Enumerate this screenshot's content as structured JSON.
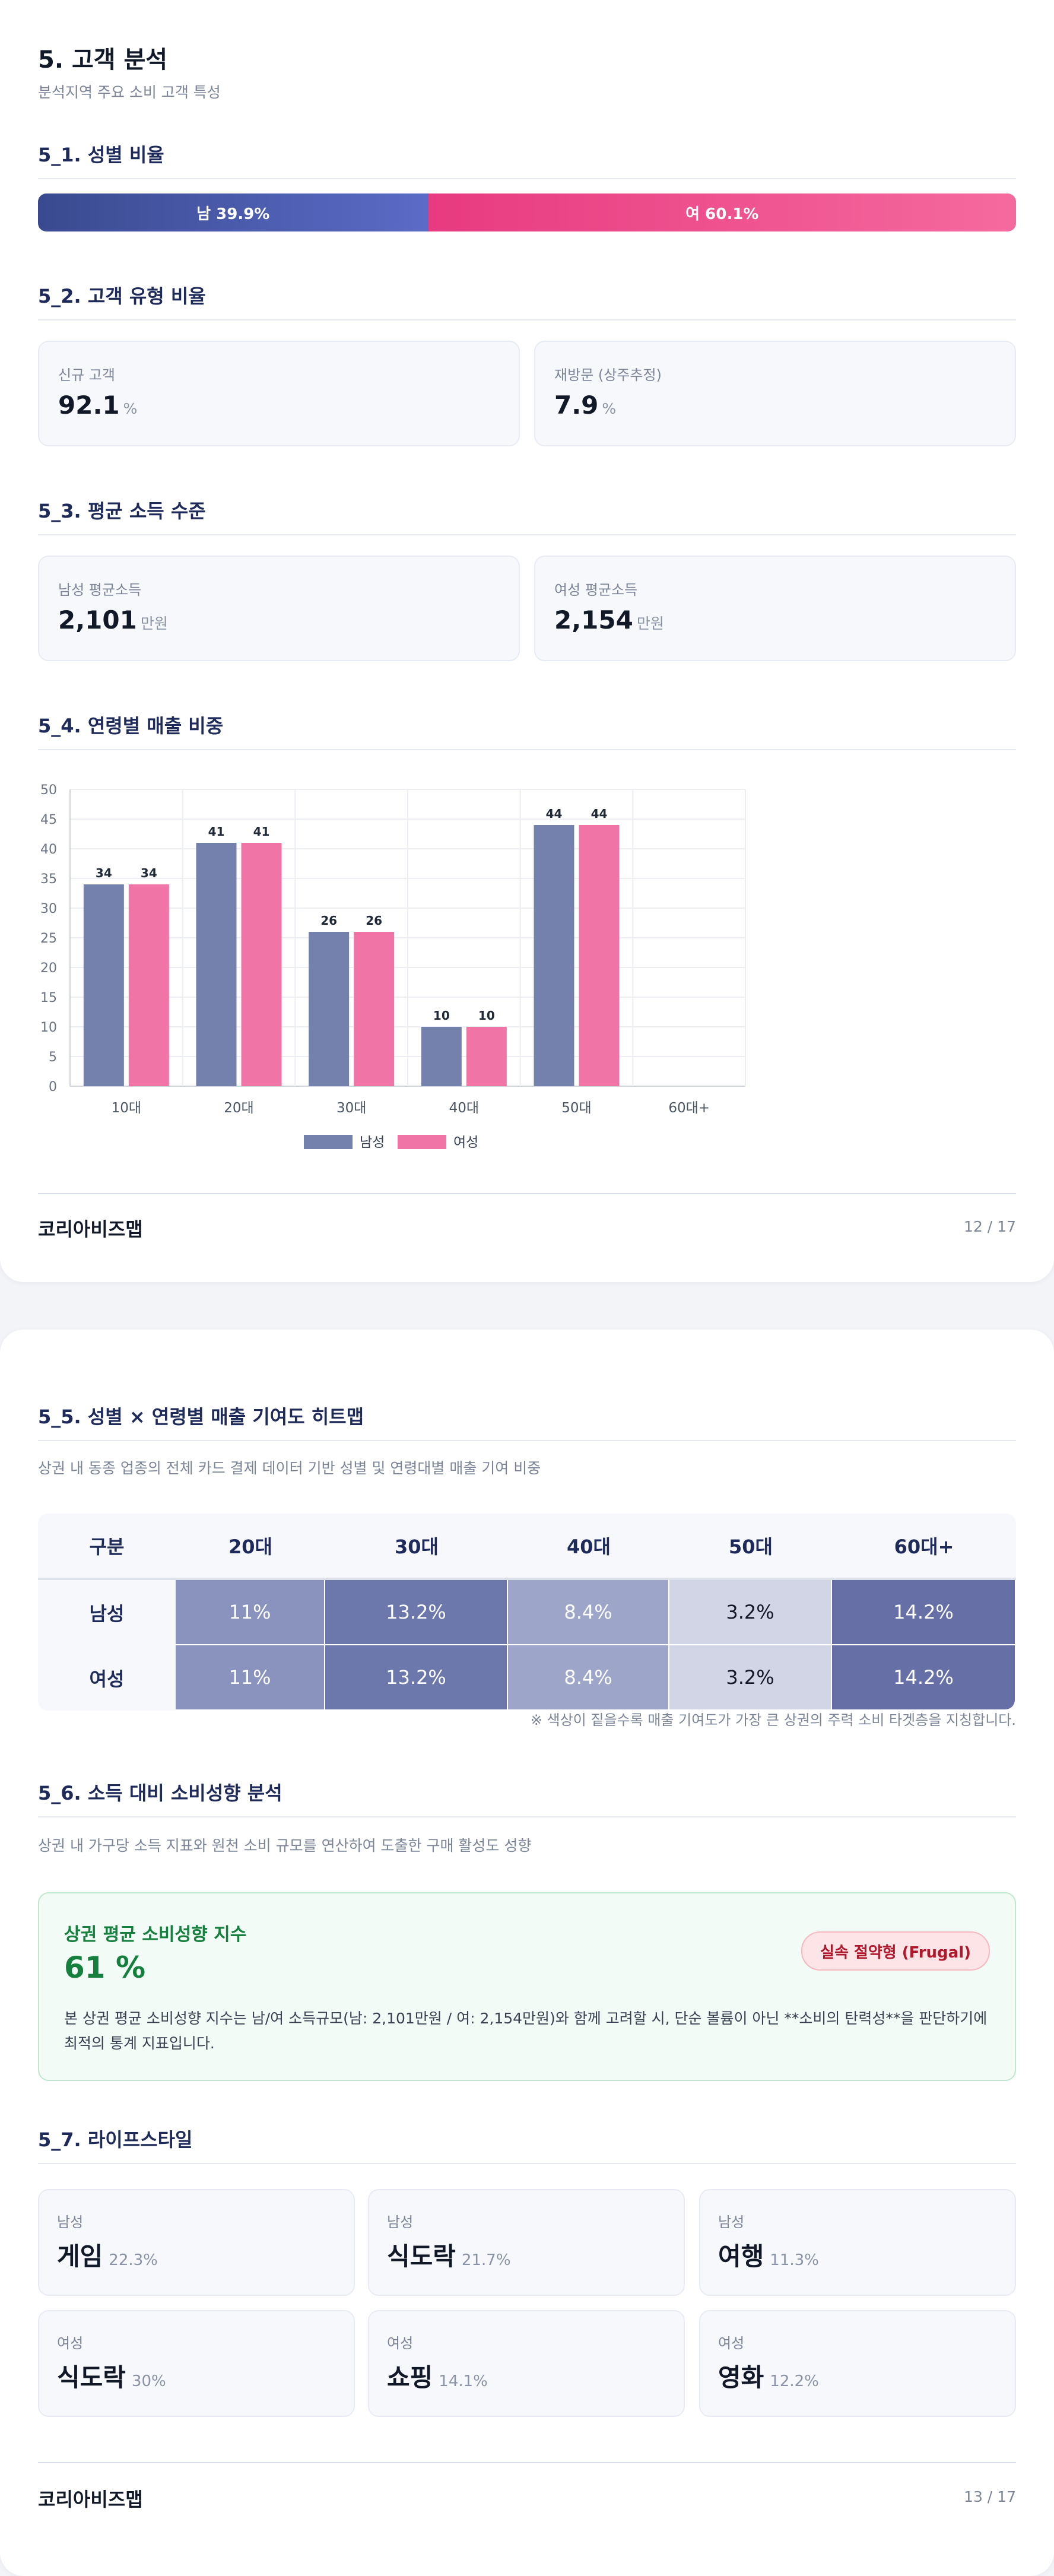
{
  "page1": {
    "title": "5. 고객 분석",
    "subtitle": "분석지역 주요 소비 고객 특성",
    "gender": {
      "section_title": "5_1. 성별 비율",
      "male_label": "남 39.9%",
      "female_label": "여 60.1%",
      "male_pct": 39.9,
      "female_pct": 60.1,
      "colors": {
        "male": "#4a5ab0",
        "female": "#ef4f8c"
      }
    },
    "customer_type": {
      "section_title": "5_2. 고객 유형 비율",
      "cards": [
        {
          "label": "신규 고객",
          "value": "92.1",
          "unit": "%"
        },
        {
          "label": "재방문 (상주추정)",
          "value": "7.9",
          "unit": "%"
        }
      ]
    },
    "income": {
      "section_title": "5_3. 평균 소득 수준",
      "cards": [
        {
          "label": "남성 평균소득",
          "value": "2,101",
          "unit": "만원"
        },
        {
          "label": "여성 평균소득",
          "value": "2,154",
          "unit": "만원"
        }
      ]
    },
    "age_sales": {
      "section_title": "5_4. 연령별 매출 비중"
    },
    "footer": {
      "brand": "코리아비즈맵",
      "page": "12 / 17"
    }
  },
  "chart_data": {
    "type": "bar",
    "categories": [
      "10대",
      "20대",
      "30대",
      "40대",
      "50대",
      "60대+"
    ],
    "series": [
      {
        "name": "남성",
        "values": [
          34,
          41,
          26,
          10,
          44,
          null
        ],
        "labels": [
          "34",
          "41",
          "26",
          "10",
          "44",
          ""
        ],
        "color": "#7481ad"
      },
      {
        "name": "여성",
        "values": [
          34,
          41,
          26,
          10,
          44,
          null
        ],
        "labels": [
          "34",
          "41",
          "26",
          "10",
          "44",
          ""
        ],
        "color": "#f075a6"
      }
    ],
    "yticks": [
      "0",
      "5",
      "10",
      "15",
      "20",
      "25",
      "30",
      "35",
      "40",
      "45",
      "50"
    ],
    "ylim": [
      0,
      50
    ],
    "grid": true,
    "legend": "bottom",
    "title": "",
    "xlabel": "",
    "ylabel": ""
  },
  "page2": {
    "heatmap": {
      "section_title": "5_5. 성별 × 연령별 매출 기여도 히트맵",
      "description": "상권 내 동종 업종의 전체 카드 결제 데이터 기반 성별 및 연령대별 매출 기여 비중",
      "columns": [
        "구분",
        "20대",
        "30대",
        "40대",
        "50대",
        "60대+"
      ],
      "rows": [
        {
          "label": "남성",
          "cells": [
            "11%",
            "13.2%",
            "8.4%",
            "3.2%",
            "14.2%"
          ]
        },
        {
          "label": "여성",
          "cells": [
            "11%",
            "13.2%",
            "8.4%",
            "3.2%",
            "14.2%"
          ]
        }
      ],
      "cell_colors": [
        "#8a92be",
        "#6c77ab",
        "#9da5c9",
        "#d2d5e5",
        "#6670a6"
      ],
      "note": "※ 색상이 짙을수록 매출 기여도가 가장 큰 상권의 주력 소비 타겟층을 지칭합니다."
    },
    "spending": {
      "section_title": "5_6. 소득 대비 소비성향 분석",
      "description": "상권 내 가구당 소득 지표와 원천 소비 규모를 연산하여 도출한 구매 활성도 성향",
      "card_title": "상권 평균 소비성향 지수",
      "value": "61 %",
      "badge": "실속 절약형 (Frugal)",
      "body": "본 상권 평균 소비성향 지수는 남/여 소득규모(남: 2,101만원 / 여: 2,154만원)와 함께 고려할 시, 단순 볼륨이 아닌 **소비의 탄력성**을 판단하기에 최적의 통계 지표입니다."
    },
    "lifestyle": {
      "section_title": "5_7. 라이프스타일",
      "cards": [
        {
          "gender": "남성",
          "name": "게임",
          "pct": "22.3%"
        },
        {
          "gender": "남성",
          "name": "식도락",
          "pct": "21.7%"
        },
        {
          "gender": "남성",
          "name": "여행",
          "pct": "11.3%"
        },
        {
          "gender": "여성",
          "name": "식도락",
          "pct": "30%"
        },
        {
          "gender": "여성",
          "name": "쇼핑",
          "pct": "14.1%"
        },
        {
          "gender": "여성",
          "name": "영화",
          "pct": "12.2%"
        }
      ]
    },
    "footer": {
      "brand": "코리아비즈맵",
      "page": "13 / 17"
    }
  }
}
